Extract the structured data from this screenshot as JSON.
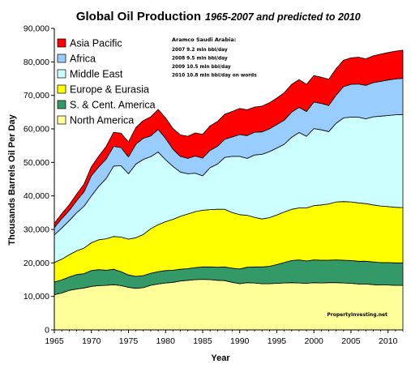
{
  "chart_data": {
    "type": "area",
    "stacked": true,
    "title": "Global Oil Production",
    "subtitle": "1965-2007 and predicted to 2010",
    "xlabel": "Year",
    "ylabel": "Thousands Barrels Oil Per Day",
    "xlim": [
      1965,
      2012
    ],
    "ylim": [
      0,
      90000
    ],
    "x_ticks": [
      "1965",
      "1970",
      "1975",
      "1980",
      "1985",
      "1990",
      "1995",
      "2000",
      "2005",
      "2010"
    ],
    "y_ticks": [
      "0",
      "10,000",
      "20,000",
      "30,000",
      "40,000",
      "50,000",
      "60,000",
      "70,000",
      "80,000",
      "90,000"
    ],
    "grid": false,
    "legend_position": "top-left",
    "x": [
      1965,
      1966,
      1967,
      1968,
      1969,
      1970,
      1971,
      1972,
      1973,
      1974,
      1975,
      1976,
      1977,
      1978,
      1979,
      1980,
      1981,
      1982,
      1983,
      1984,
      1985,
      1986,
      1987,
      1988,
      1989,
      1990,
      1991,
      1992,
      1993,
      1994,
      1995,
      1996,
      1997,
      1998,
      1999,
      2000,
      2001,
      2002,
      2003,
      2004,
      2005,
      2006,
      2007,
      2008,
      2009,
      2010,
      2011,
      2012
    ],
    "series": [
      {
        "name": "North America",
        "color": "#ffff99",
        "values": [
          10500,
          11000,
          11800,
          12200,
          12500,
          13000,
          13200,
          13300,
          13500,
          13200,
          12700,
          12400,
          12600,
          13300,
          13700,
          14000,
          14200,
          14600,
          14800,
          15000,
          15100,
          15000,
          14800,
          14700,
          14200,
          13800,
          14100,
          14000,
          13800,
          13800,
          13900,
          14000,
          14100,
          14000,
          13900,
          14100,
          14000,
          14100,
          14100,
          14000,
          13900,
          13700,
          13700,
          13500,
          13400,
          13400,
          13300,
          13300
        ]
      },
      {
        "name": "S. & Cent. America",
        "color": "#339966",
        "values": [
          3800,
          3900,
          4000,
          4300,
          4300,
          4700,
          4800,
          4500,
          4600,
          4200,
          3700,
          3600,
          3600,
          3600,
          3700,
          3700,
          3600,
          3500,
          3500,
          3600,
          3700,
          3800,
          3900,
          4100,
          4200,
          4400,
          4600,
          4800,
          5000,
          5200,
          5600,
          6100,
          6600,
          6900,
          6700,
          6800,
          6800,
          6700,
          6800,
          6800,
          6800,
          6800,
          6800,
          6800,
          6700,
          6700,
          6700,
          6700
        ]
      },
      {
        "name": "Europe & Eurasia",
        "color": "#ffff00",
        "values": [
          5800,
          6200,
          6600,
          7100,
          7600,
          8300,
          8900,
          9400,
          9800,
          10300,
          10700,
          11500,
          12300,
          13300,
          14000,
          14600,
          15200,
          15800,
          16300,
          16700,
          16900,
          17100,
          17300,
          17200,
          16600,
          16200,
          15500,
          14800,
          14300,
          14500,
          14800,
          15100,
          15300,
          15500,
          15800,
          16200,
          16500,
          16800,
          17300,
          17500,
          17500,
          17400,
          17200,
          17000,
          16900,
          16700,
          16600,
          16500
        ]
      },
      {
        "name": "Middle East",
        "color": "#ccffff",
        "values": [
          8200,
          9300,
          10200,
          11300,
          12500,
          14000,
          16000,
          18000,
          21000,
          21300,
          19500,
          22000,
          22400,
          21500,
          21700,
          18500,
          15800,
          13200,
          12000,
          11500,
          10300,
          12500,
          13500,
          15500,
          16800,
          17400,
          17000,
          18600,
          19300,
          19700,
          20000,
          20200,
          21500,
          22500,
          21400,
          23000,
          22400,
          21600,
          23500,
          25000,
          25300,
          25600,
          25300,
          26300,
          26800,
          27200,
          27600,
          27800
        ]
      },
      {
        "name": "Africa",
        "color": "#99ccff",
        "values": [
          2200,
          2800,
          3000,
          3600,
          4300,
          6000,
          5800,
          5800,
          5900,
          5400,
          5000,
          5900,
          6300,
          6200,
          6700,
          6400,
          5100,
          4700,
          4600,
          5100,
          5300,
          5200,
          5300,
          5400,
          5800,
          6500,
          6800,
          6800,
          6700,
          6800,
          7000,
          7200,
          7500,
          7500,
          7400,
          7900,
          7900,
          7800,
          8400,
          9300,
          9800,
          9900,
          10000,
          10200,
          10400,
          10600,
          10700,
          10800
        ]
      },
      {
        "name": "Asia Pacific",
        "color": "#ff0000",
        "values": [
          1300,
          1500,
          1700,
          2000,
          2300,
          2700,
          3200,
          3800,
          4200,
          4300,
          4500,
          5000,
          5300,
          5700,
          6000,
          6100,
          6200,
          6400,
          6600,
          6900,
          7100,
          7300,
          7400,
          7500,
          7600,
          7800,
          7700,
          7500,
          7700,
          7800,
          7900,
          8200,
          8300,
          8300,
          8100,
          7900,
          7800,
          7800,
          7900,
          7900,
          7900,
          8000,
          7900,
          8000,
          8100,
          8200,
          8300,
          8400
        ]
      }
    ],
    "annotation": {
      "title": "Aramco Saudi Arabia:",
      "lines": [
        "2007 9.2 mln bbl/day",
        "2008 9.5 mln bbl/day",
        "2009 10.5 mln bbl/day",
        "2010 10.8 mln bbl/day on words"
      ]
    },
    "credit": "PropertyInvesting.net"
  }
}
